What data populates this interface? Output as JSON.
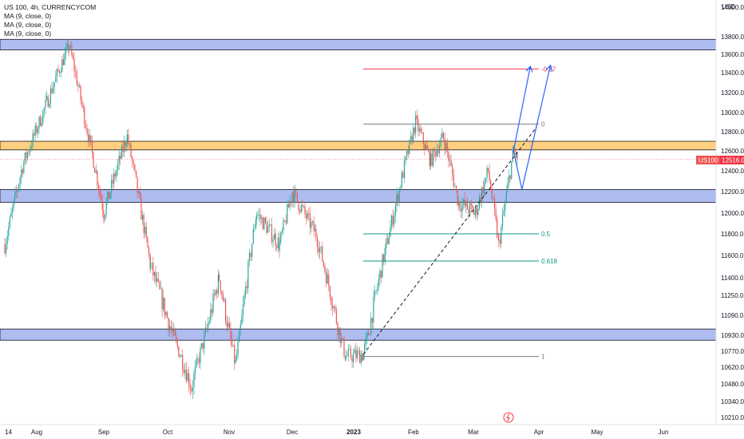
{
  "legend": {
    "symbol": "US 100, 4h, CURRENCYCOM",
    "indicators": [
      "MA (9, close, 0)",
      "MA (9, close, 0)",
      "MA (9, close, 0)"
    ]
  },
  "price_axis": {
    "currency": "USD",
    "ticks": [
      "14000.0",
      "13800.0",
      "13600.0",
      "13400.0",
      "13200.0",
      "13000.0",
      "12800.0",
      "12600.0",
      "12400.0",
      "12200.0",
      "12000.0",
      "11800.0",
      "11600.0",
      "11400.0",
      "11250.0",
      "11090.0",
      "10930.0",
      "10770.0",
      "10620.0",
      "10480.0",
      "10340.0",
      "10210.0"
    ],
    "current_label": "US100",
    "current_value": "12516.0"
  },
  "time_axis": {
    "labels": [
      "14",
      "Aug",
      "Sep",
      "Oct",
      "Nov",
      "Dec",
      "2023",
      "Feb",
      "Mar",
      "Apr",
      "May",
      "Jun"
    ]
  },
  "fib_labels": [
    "-0.27",
    "0",
    "0.5",
    "0.618",
    "1"
  ],
  "colors": {
    "up": "#26a69a",
    "down": "#ef5350",
    "zone_blue": "#aebcf0",
    "zone_orange": "#ffcf80",
    "fib_red": "#f23645",
    "fib_gray": "#787b86",
    "fib_teal": "#089981",
    "projection": "#2962ff",
    "current_price": "#f23645"
  },
  "chart_data": {
    "type": "candlestick",
    "title": "US 100, 4h, CURRENCYCOM",
    "price_unit": "USD",
    "price_range": [
      10210,
      14000
    ],
    "date_range": [
      "2022-07-14",
      "2023-06-01"
    ],
    "current_price": 12516.0,
    "key_points": [
      {
        "date": "2022-07-14",
        "price": 11700
      },
      {
        "date": "2022-07-24",
        "price": 12450
      },
      {
        "date": "2022-08-16",
        "price": 13700
      },
      {
        "date": "2022-09-01",
        "price": 12000
      },
      {
        "date": "2022-09-12",
        "price": 12750
      },
      {
        "date": "2022-09-23",
        "price": 11500
      },
      {
        "date": "2022-10-13",
        "price": 10450
      },
      {
        "date": "2022-10-27",
        "price": 11400
      },
      {
        "date": "2022-11-04",
        "price": 10650
      },
      {
        "date": "2022-11-14",
        "price": 12000
      },
      {
        "date": "2022-11-25",
        "price": 11700
      },
      {
        "date": "2022-12-01",
        "price": 12200
      },
      {
        "date": "2022-12-13",
        "price": 11800
      },
      {
        "date": "2022-12-28",
        "price": 10720
      },
      {
        "date": "2023-01-06",
        "price": 10740
      },
      {
        "date": "2023-01-18",
        "price": 11700
      },
      {
        "date": "2023-02-02",
        "price": 12900
      },
      {
        "date": "2023-02-09",
        "price": 12500
      },
      {
        "date": "2023-02-15",
        "price": 12750
      },
      {
        "date": "2023-02-22",
        "price": 12100
      },
      {
        "date": "2023-03-02",
        "price": 12000
      },
      {
        "date": "2023-03-08",
        "price": 12400
      },
      {
        "date": "2023-03-13",
        "price": 11700
      },
      {
        "date": "2023-03-20",
        "price": 12600
      },
      {
        "date": "2023-03-22",
        "price": 12516
      }
    ],
    "zones": [
      {
        "color": "blue",
        "from": 13650,
        "to": 13770
      },
      {
        "color": "orange",
        "from": 12610,
        "to": 12700
      },
      {
        "color": "blue",
        "from": 12100,
        "to": 12220
      },
      {
        "color": "blue",
        "from": 10880,
        "to": 10980
      }
    ],
    "fibonacci": {
      "start_date": "2023-01-06",
      "end_date": "2023-04-01",
      "levels": [
        {
          "label": "-0.27",
          "price": 13440
        },
        {
          "label": "0",
          "price": 12880
        },
        {
          "label": "0.5",
          "price": 11800
        },
        {
          "label": "0.618",
          "price": 11550
        },
        {
          "label": "1",
          "price": 10720
        }
      ]
    },
    "trendline": {
      "from": {
        "date": "2023-01-06",
        "price": 10740
      },
      "to": {
        "date": "2023-03-31",
        "price": 12850
      },
      "style": "dashed"
    },
    "projections": [
      {
        "points": [
          {
            "date": "2023-03-20",
            "price": 12600
          },
          {
            "date": "2023-03-28",
            "price": 13470
          }
        ]
      },
      {
        "points": [
          {
            "date": "2023-03-20",
            "price": 12600
          },
          {
            "date": "2023-03-24",
            "price": 12220
          },
          {
            "date": "2023-04-07",
            "price": 13480
          }
        ]
      }
    ]
  }
}
